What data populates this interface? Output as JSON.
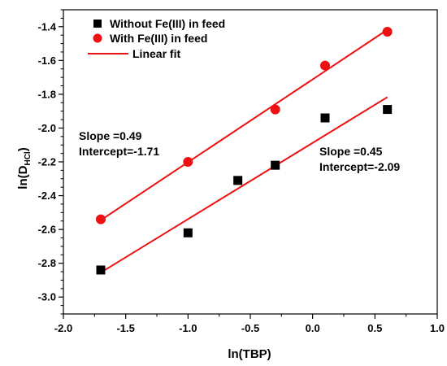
{
  "chart_data": {
    "type": "scatter",
    "xlabel": "ln(TBP)",
    "ylabel_main": "ln(D",
    "ylabel_sub": "HCl",
    "ylabel_close": ")",
    "xlim": [
      -2.0,
      1.0
    ],
    "ylim": [
      -3.1,
      -1.3
    ],
    "x_major_ticks": [
      -2.0,
      -1.5,
      -1.0,
      -0.5,
      0.0,
      0.5,
      1.0
    ],
    "x_tick_labels": [
      "-2.0",
      "-1.5",
      "-1.0",
      "-0.5",
      "0.0",
      "0.5",
      "1.0"
    ],
    "y_major_ticks": [
      -3.0,
      -2.8,
      -2.6,
      -2.4,
      -2.2,
      -2.0,
      -1.8,
      -1.6,
      -1.4
    ],
    "y_tick_labels": [
      "-3.0",
      "-2.8",
      "-2.6",
      "-2.4",
      "-2.2",
      "-2.0",
      "-1.8",
      "-1.6",
      "-1.4"
    ],
    "grid": false,
    "legend_position": "top-left",
    "series": [
      {
        "name": "Without Fe(III) in feed",
        "marker": "square",
        "color": "#000000",
        "x": [
          -1.7,
          -1.0,
          -0.6,
          -0.3,
          0.1,
          0.6
        ],
        "y": [
          -2.84,
          -2.62,
          -2.31,
          -2.22,
          -1.94,
          -1.89
        ]
      },
      {
        "name": "With Fe(III) in feed",
        "marker": "circle",
        "color": "#ee1111",
        "x": [
          -1.7,
          -1.0,
          -0.3,
          0.1,
          0.6
        ],
        "y": [
          -2.54,
          -2.2,
          -1.89,
          -1.63,
          -1.43
        ]
      }
    ],
    "fit_lines": [
      {
        "name": "Linear fit",
        "color": "#ee1111",
        "x": [
          -1.7,
          0.6
        ],
        "y": [
          -2.545,
          -1.418
        ],
        "slope_label": "Slope =0.49",
        "intercept_label": "Intercept=-1.71"
      },
      {
        "name": "",
        "color": "#ee1111",
        "x": [
          -1.7,
          0.6
        ],
        "y": [
          -2.855,
          -1.817
        ],
        "slope_label": "Slope =0.45",
        "intercept_label": "Intercept=-2.09"
      }
    ],
    "legend_fit_label": "Linear fit"
  }
}
